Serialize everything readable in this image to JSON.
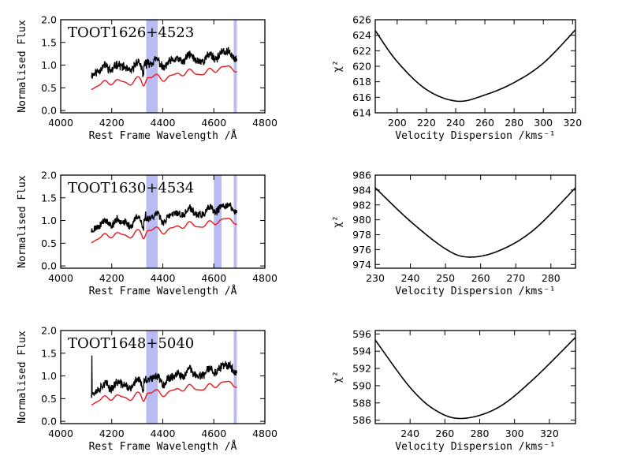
{
  "colors": {
    "data": "#000000",
    "model": "#e8161b",
    "mask": "#b8bcf2",
    "axis": "#000000"
  },
  "chart_data": [
    {
      "type": "line",
      "panel": "spectrum",
      "title": "TOOT1626+4523",
      "xlabel": "Rest Frame Wavelength /Å",
      "ylabel": "Normalised Flux",
      "xlim": [
        4000,
        4800
      ],
      "ylim": [
        -0.05,
        2.0
      ],
      "xticks": [
        4000,
        4200,
        4400,
        4600,
        4800
      ],
      "yticks": [
        0.0,
        0.5,
        1.0,
        1.5,
        2.0
      ],
      "masked_regions": [
        [
          4335,
          4380
        ],
        [
          4678,
          4690
        ]
      ],
      "x_range": [
        4120,
        4690
      ],
      "data_start": 0.88,
      "data_end": 1.25,
      "model_start": 0.55,
      "model_end": 0.95,
      "dip_x": 4330,
      "noise": 0.08,
      "seed": 11
    },
    {
      "type": "line",
      "panel": "chi2",
      "xlabel": "Velocity Dispersion /kms⁻¹",
      "ylabel": "χ²",
      "xlim": [
        185,
        322
      ],
      "ylim": [
        614,
        626
      ],
      "xticks": [
        200,
        220,
        240,
        260,
        280,
        300,
        320
      ],
      "yticks": [
        614,
        616,
        618,
        620,
        622,
        624,
        626
      ],
      "series": [
        {
          "x": [
            185,
            200,
            220,
            241,
            260,
            280,
            300,
            322
          ],
          "y": [
            624.6,
            620.6,
            617.0,
            615.5,
            616.3,
            617.9,
            620.4,
            624.7
          ]
        }
      ]
    },
    {
      "type": "line",
      "panel": "spectrum",
      "title": "TOOT1630+4534",
      "xlabel": "Rest Frame Wavelength /Å",
      "ylabel": "Normalised Flux",
      "xlim": [
        4000,
        4800
      ],
      "ylim": [
        -0.05,
        2.0
      ],
      "xticks": [
        4000,
        4200,
        4400,
        4600,
        4800
      ],
      "yticks": [
        0.0,
        0.5,
        1.0,
        1.5,
        2.0
      ],
      "masked_regions": [
        [
          4335,
          4380
        ],
        [
          4600,
          4630
        ],
        [
          4678,
          4690
        ]
      ],
      "x_range": [
        4120,
        4690
      ],
      "data_start": 0.88,
      "data_end": 1.3,
      "model_start": 0.6,
      "model_end": 1.02,
      "dip_x": 4330,
      "noise": 0.07,
      "seed": 23
    },
    {
      "type": "line",
      "panel": "chi2",
      "xlabel": "Velocity Dispersion /kms⁻¹",
      "ylabel": "χ²",
      "xlim": [
        230,
        287
      ],
      "ylim": [
        973.5,
        986
      ],
      "xticks": [
        230,
        240,
        250,
        260,
        270,
        280
      ],
      "yticks": [
        974,
        976,
        978,
        980,
        982,
        984,
        986
      ],
      "series": [
        {
          "x": [
            230,
            240,
            250,
            256.5,
            265,
            275,
            287
          ],
          "y": [
            984.3,
            979.8,
            976.1,
            975.0,
            975.8,
            978.6,
            984.3
          ]
        }
      ]
    },
    {
      "type": "line",
      "panel": "spectrum",
      "title": "TOOT1648+5040",
      "xlabel": "Rest Frame Wavelength /Å",
      "ylabel": "Normalised Flux",
      "xlim": [
        4000,
        4800
      ],
      "ylim": [
        -0.05,
        2.0
      ],
      "xticks": [
        4000,
        4200,
        4400,
        4600,
        4800
      ],
      "yticks": [
        0.0,
        0.5,
        1.0,
        1.5,
        2.0
      ],
      "masked_regions": [
        [
          4335,
          4380
        ],
        [
          4678,
          4690
        ]
      ],
      "x_range": [
        4120,
        4690
      ],
      "data_start": 0.7,
      "data_end": 1.2,
      "model_start": 0.45,
      "model_end": 0.85,
      "dip_x": 4330,
      "noise": 0.08,
      "seed": 37
    },
    {
      "type": "line",
      "panel": "chi2",
      "xlabel": "Velocity Dispersion /kms⁻¹",
      "ylabel": "χ²",
      "xlim": [
        220,
        335
      ],
      "ylim": [
        585.6,
        596.4
      ],
      "xticks": [
        240,
        260,
        280,
        300,
        320
      ],
      "yticks": [
        586,
        588,
        590,
        592,
        594,
        596
      ],
      "series": [
        {
          "x": [
            220,
            240,
            255,
            270,
            290,
            310,
            335
          ],
          "y": [
            595.3,
            589.8,
            587.1,
            586.2,
            587.4,
            590.6,
            595.6
          ]
        }
      ]
    }
  ]
}
